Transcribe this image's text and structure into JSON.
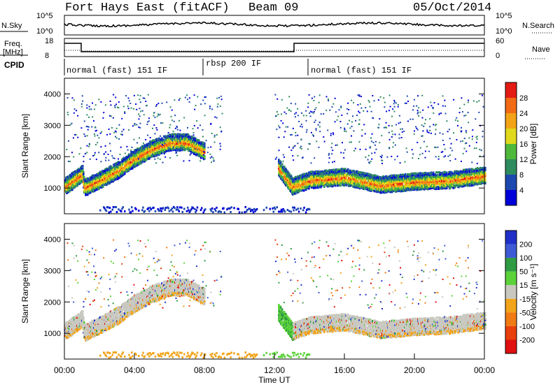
{
  "header": {
    "station": "Fort Hays East (fitACF)",
    "beam": "Beam 09",
    "date": "05/Oct/2014"
  },
  "strip": {
    "nsky_label": "N.Sky",
    "nsky_ticks": [
      "10^5",
      "10^0"
    ],
    "nsearch_label": "N.Search",
    "nsearch_ticks": [
      "10^5",
      "10^0"
    ],
    "freq_label": "Freq.",
    "freq_unit": "[MHz]",
    "freq_ticks": [
      "18",
      "8"
    ],
    "nave_label": "Nave",
    "nave_ticks": [
      "60",
      "0"
    ],
    "cpid_label": "CPID",
    "modes": [
      {
        "label": "normal (fast) 151 IF",
        "start_h": 0,
        "end_h": 8
      },
      {
        "label": "rbsp 200 IF",
        "start_h": 8,
        "end_h": 14
      },
      {
        "label": "normal (fast) 151 IF",
        "start_h": 14,
        "end_h": 24
      }
    ]
  },
  "chart_data": [
    {
      "type": "heatmap",
      "quantity": "power",
      "xlabel": "",
      "ylabel": "Slant Range [km]",
      "xlim_hours": [
        0,
        24
      ],
      "ylim": [
        180,
        4500
      ],
      "yticks": [
        "1000",
        "2000",
        "3000",
        "4000"
      ],
      "colorbar": {
        "label": "Power [dB]",
        "ticks": [
          "4",
          "8",
          "12",
          "16",
          "20",
          "24",
          "28"
        ],
        "range": [
          0,
          30
        ]
      },
      "features": [
        {
          "desc": "main scatter band",
          "time_h": [
            0,
            1,
            1.1,
            2,
            3,
            4,
            5,
            6,
            7,
            8
          ],
          "range_km": [
            1100,
            1500,
            1050,
            1300,
            1600,
            2000,
            2300,
            2500,
            2500,
            2200
          ],
          "peak_db": 28
        },
        {
          "desc": "evening band",
          "time_h": [
            12.2,
            13,
            14,
            16,
            18,
            20,
            22,
            24
          ],
          "range_km": [
            1700,
            1100,
            1300,
            1400,
            1150,
            1250,
            1300,
            1450
          ],
          "peak_db": 30
        }
      ]
    },
    {
      "type": "heatmap",
      "quantity": "velocity",
      "xlabel": "Time UT",
      "ylabel": "Slant Range [km]",
      "xlim_hours": [
        0,
        24
      ],
      "ylim": [
        180,
        4500
      ],
      "xticks": [
        "00:00",
        "04:00",
        "08:00",
        "12:00",
        "16:00",
        "20:00",
        "00:00"
      ],
      "yticks": [
        "1000",
        "2000",
        "3000",
        "4000"
      ],
      "colorbar": {
        "label": "Velocity [m s⁻¹]",
        "ticks": [
          "200",
          "100",
          "50",
          "15",
          "-15",
          "-50",
          "-100",
          "-200"
        ]
      }
    }
  ],
  "colors": {
    "power_scale": [
      "#0000d8",
      "#1c48b0",
      "#2e8c5e",
      "#4fb83a",
      "#e0d81a",
      "#f2a316",
      "#f26a14",
      "#e41a14"
    ],
    "velocity_scale": [
      "#1f2fc8",
      "#3e5ad4",
      "#2f9c44",
      "#5cd23a",
      "#c8c8c0",
      "#f2a41a",
      "#f07a14",
      "#e8400c",
      "#e01010"
    ]
  }
}
